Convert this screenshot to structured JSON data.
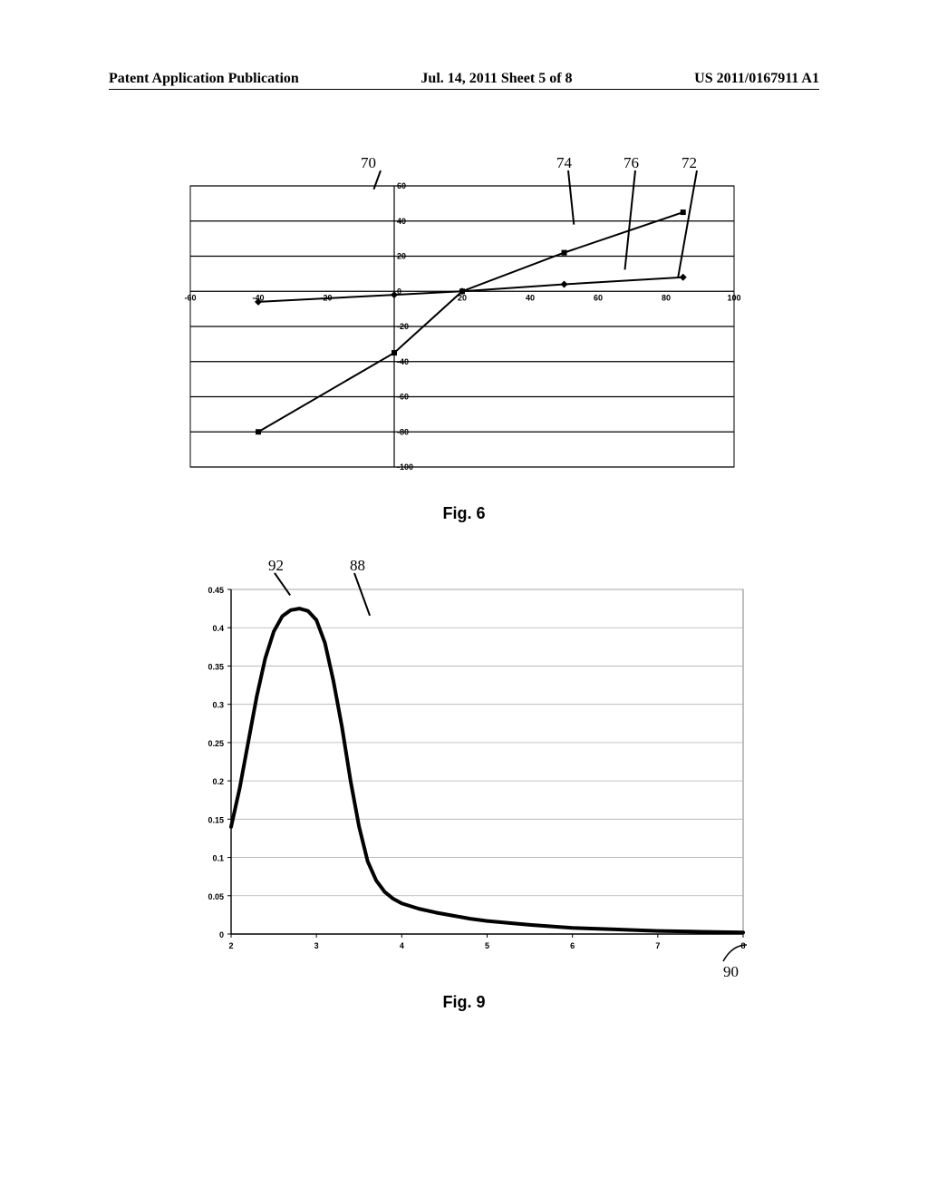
{
  "header": {
    "left": "Patent Application Publication",
    "center": "Jul. 14, 2011  Sheet 5 of 8",
    "right": "US 2011/0167911 A1"
  },
  "fig6": {
    "caption": "Fig. 6",
    "type": "line",
    "xlim": [
      -60,
      100
    ],
    "ylim": [
      -100,
      60
    ],
    "xticks": [
      -60,
      -40,
      -20,
      0,
      20,
      40,
      60,
      80,
      100
    ],
    "yticks": [
      -100,
      -80,
      -60,
      -40,
      -20,
      0,
      20,
      40,
      60
    ],
    "ytick_labels": [
      "-100",
      "-80",
      "-60",
      "-40",
      "-20",
      "0",
      "20",
      "40",
      "60"
    ],
    "xtick_labels": [
      "-60",
      "-40",
      "-20",
      "0",
      "20",
      "40",
      "60",
      "80",
      "100"
    ],
    "background_color": "#ffffff",
    "grid_color": "#000000",
    "axis_color": "#000000",
    "series": [
      {
        "label_ref": "74",
        "marker": "square",
        "marker_size": 6,
        "line_width": 2,
        "color": "#000000",
        "points": [
          [
            -40,
            -80
          ],
          [
            0,
            -35
          ],
          [
            20,
            0
          ],
          [
            50,
            22
          ],
          [
            85,
            45
          ]
        ]
      },
      {
        "label_ref": "76",
        "marker": "diamond",
        "marker_size": 6,
        "line_width": 2,
        "color": "#000000",
        "points": [
          [
            -40,
            -6
          ],
          [
            0,
            -2
          ],
          [
            20,
            0
          ],
          [
            50,
            4
          ],
          [
            85,
            8
          ]
        ]
      }
    ],
    "callouts": [
      {
        "label": "70",
        "target": "y-axis-top"
      },
      {
        "label": "74",
        "target": "steep-line"
      },
      {
        "label": "76",
        "target": "shallow-line"
      },
      {
        "label": "72",
        "target": "x-axis-end"
      }
    ]
  },
  "fig9": {
    "caption": "Fig. 9",
    "type": "line",
    "xlim": [
      2,
      8
    ],
    "ylim": [
      0,
      0.45
    ],
    "xticks": [
      2,
      3,
      4,
      5,
      6,
      7,
      8
    ],
    "yticks": [
      0,
      0.05,
      0.1,
      0.15,
      0.2,
      0.25,
      0.3,
      0.35,
      0.4,
      0.45
    ],
    "ytick_labels": [
      "0",
      "0.05",
      "0.1",
      "0.15",
      "0.2",
      "0.25",
      "0.3",
      "0.35",
      "0.4",
      "0.45"
    ],
    "xtick_labels": [
      "2",
      "3",
      "4",
      "5",
      "6",
      "7",
      "8"
    ],
    "background_color": "#ffffff",
    "grid_color": "#b0b0b0",
    "border_color": "#808080",
    "series_color": "#000000",
    "series_line_width": 4,
    "curve": {
      "description": "peak curve starting at (2,0.14), rising to peak ~(2.85,0.425), falling to ~(4,0.04), asymptotic to near 0 by x=8",
      "points": [
        [
          2.0,
          0.14
        ],
        [
          2.1,
          0.19
        ],
        [
          2.2,
          0.25
        ],
        [
          2.3,
          0.31
        ],
        [
          2.4,
          0.36
        ],
        [
          2.5,
          0.395
        ],
        [
          2.6,
          0.415
        ],
        [
          2.7,
          0.423
        ],
        [
          2.8,
          0.425
        ],
        [
          2.9,
          0.422
        ],
        [
          3.0,
          0.41
        ],
        [
          3.1,
          0.38
        ],
        [
          3.2,
          0.33
        ],
        [
          3.3,
          0.27
        ],
        [
          3.4,
          0.2
        ],
        [
          3.5,
          0.14
        ],
        [
          3.6,
          0.095
        ],
        [
          3.7,
          0.07
        ],
        [
          3.8,
          0.055
        ],
        [
          3.9,
          0.046
        ],
        [
          4.0,
          0.04
        ],
        [
          4.2,
          0.033
        ],
        [
          4.4,
          0.028
        ],
        [
          4.6,
          0.024
        ],
        [
          4.8,
          0.02
        ],
        [
          5.0,
          0.017
        ],
        [
          5.5,
          0.012
        ],
        [
          6.0,
          0.008
        ],
        [
          6.5,
          0.006
        ],
        [
          7.0,
          0.004
        ],
        [
          7.5,
          0.003
        ],
        [
          8.0,
          0.002
        ]
      ]
    },
    "callouts": [
      {
        "label": "92",
        "target": "y-axis"
      },
      {
        "label": "88",
        "target": "peak-curve"
      },
      {
        "label": "90",
        "target": "x-axis-end"
      }
    ]
  }
}
